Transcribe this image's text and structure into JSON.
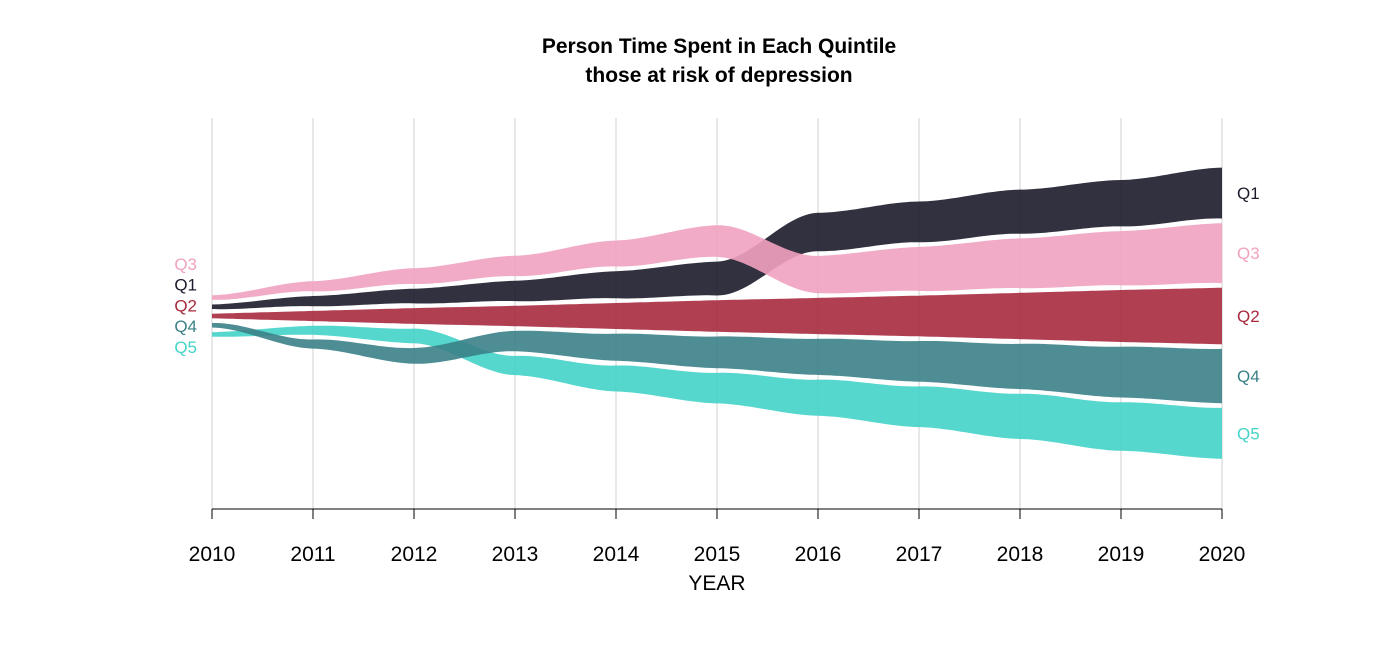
{
  "chart_data": {
    "type": "area",
    "title": "Person Time Spent in Each Quintile",
    "subtitle": "those at risk of depression",
    "xlabel": "YEAR",
    "ylabel": "",
    "x": [
      2010,
      2011,
      2012,
      2013,
      2014,
      2015,
      2016,
      2017,
      2018,
      2019,
      2020
    ],
    "xticks": [
      "2010",
      "2011",
      "2012",
      "2013",
      "2014",
      "2015",
      "2016",
      "2017",
      "2018",
      "2019",
      "2020"
    ],
    "xlim": [
      2010,
      2020
    ],
    "grid": true,
    "legend": "direct labels at left and right",
    "series": [
      {
        "name": "Q1",
        "color": "#1c1b2b",
        "values": [
          0.4,
          0.9,
          1.3,
          1.8,
          2.4,
          3.0,
          3.4,
          3.6,
          3.9,
          4.1,
          4.5
        ]
      },
      {
        "name": "Q2",
        "color": "#a72a3e",
        "values": [
          0.4,
          0.9,
          1.4,
          1.8,
          2.3,
          2.8,
          3.2,
          3.6,
          4.1,
          4.6,
          5.0
        ]
      },
      {
        "name": "Q3",
        "color": "#f1a2c0",
        "values": [
          0.4,
          0.9,
          1.4,
          1.8,
          2.3,
          2.8,
          3.3,
          3.9,
          4.4,
          4.8,
          5.3
        ]
      },
      {
        "name": "Q4",
        "color": "#3a8187",
        "values": [
          0.4,
          0.8,
          1.4,
          1.8,
          2.4,
          2.8,
          3.2,
          3.6,
          4.0,
          4.5,
          4.8
        ]
      },
      {
        "name": "Q5",
        "color": "#44d3c8",
        "values": [
          0.4,
          0.8,
          1.3,
          1.7,
          2.3,
          2.7,
          3.2,
          3.6,
          4.0,
          4.3,
          4.5
        ]
      }
    ],
    "order": {
      "note": "top-to-bottom stacking order of the bands at each year",
      "by_year": [
        [
          "Q3",
          "Q1",
          "Q2",
          "Q4",
          "Q5"
        ],
        [
          "Q3",
          "Q1",
          "Q2",
          "Q5",
          "Q4"
        ],
        [
          "Q3",
          "Q1",
          "Q2",
          "Q5",
          "Q4"
        ],
        [
          "Q3",
          "Q1",
          "Q2",
          "Q4",
          "Q5"
        ],
        [
          "Q3",
          "Q1",
          "Q2",
          "Q4",
          "Q5"
        ],
        [
          "Q3",
          "Q1",
          "Q2",
          "Q4",
          "Q5"
        ],
        [
          "Q1",
          "Q3",
          "Q2",
          "Q4",
          "Q5"
        ],
        [
          "Q1",
          "Q3",
          "Q2",
          "Q4",
          "Q5"
        ],
        [
          "Q1",
          "Q3",
          "Q2",
          "Q4",
          "Q5"
        ],
        [
          "Q1",
          "Q3",
          "Q2",
          "Q4",
          "Q5"
        ],
        [
          "Q1",
          "Q3",
          "Q2",
          "Q4",
          "Q5"
        ]
      ]
    },
    "start_labels": [
      "Q3",
      "Q1",
      "Q2",
      "Q4",
      "Q5"
    ],
    "end_labels": [
      "Q1",
      "Q3",
      "Q2",
      "Q4",
      "Q5"
    ]
  }
}
